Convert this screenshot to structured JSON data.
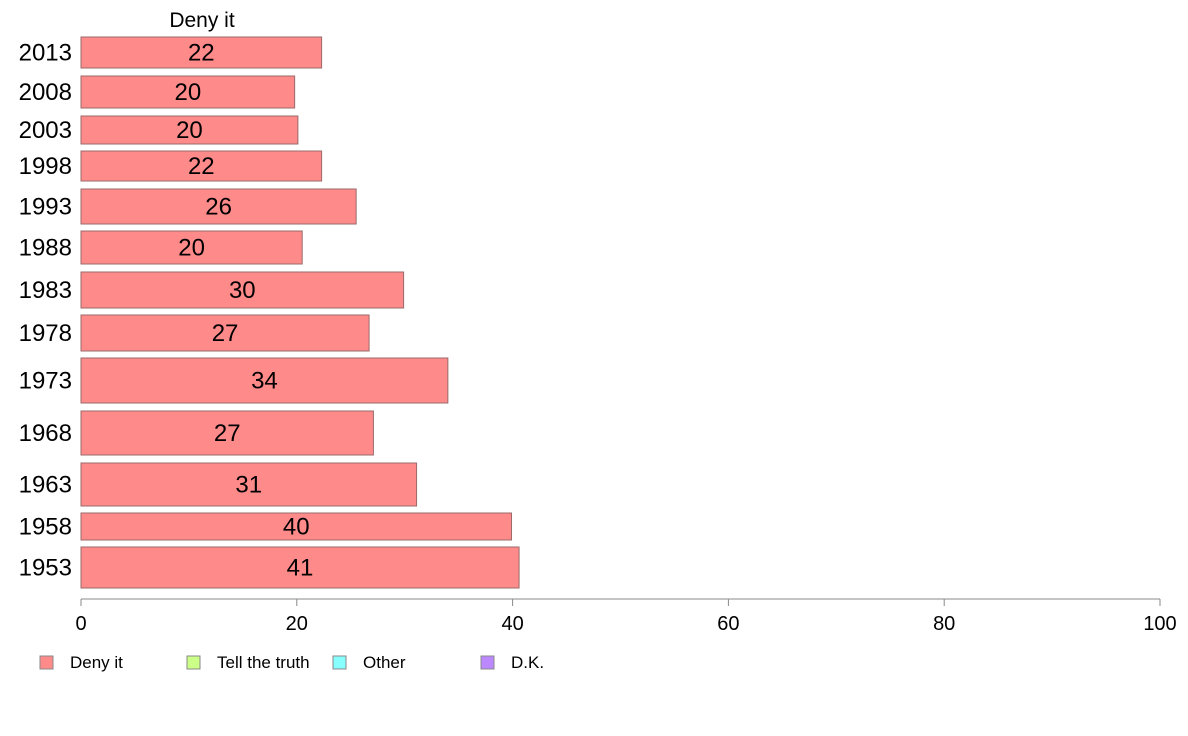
{
  "chart_data": {
    "type": "bar",
    "orientation": "horizontal",
    "title": "Deny it",
    "categories": [
      "2013",
      "2008",
      "2003",
      "1998",
      "1993",
      "1988",
      "1983",
      "1978",
      "1973",
      "1968",
      "1963",
      "1958",
      "1953"
    ],
    "series": [
      {
        "name": "Deny it",
        "color": "#ff8a8a",
        "values": [
          22,
          20,
          20,
          22,
          26,
          20,
          30,
          27,
          34,
          27,
          31,
          40,
          41
        ],
        "display_values": [
          22.3,
          19.8,
          20.1,
          22.3,
          25.5,
          20.5,
          29.9,
          26.7,
          34.0,
          27.1,
          31.1,
          39.9,
          40.6
        ]
      }
    ],
    "xlim": [
      0,
      100
    ],
    "xticks": [
      "0",
      "20",
      "40",
      "60",
      "80",
      "100"
    ],
    "grid": false,
    "legend": {
      "placement": "bottom",
      "entries": [
        {
          "label": "Deny it",
          "color": "#ff8a8a"
        },
        {
          "label": "Tell the truth",
          "color": "#ccff88"
        },
        {
          "label": "Other",
          "color": "#88ffff"
        },
        {
          "label": "D.K.",
          "color": "#bb88ff"
        }
      ]
    }
  }
}
